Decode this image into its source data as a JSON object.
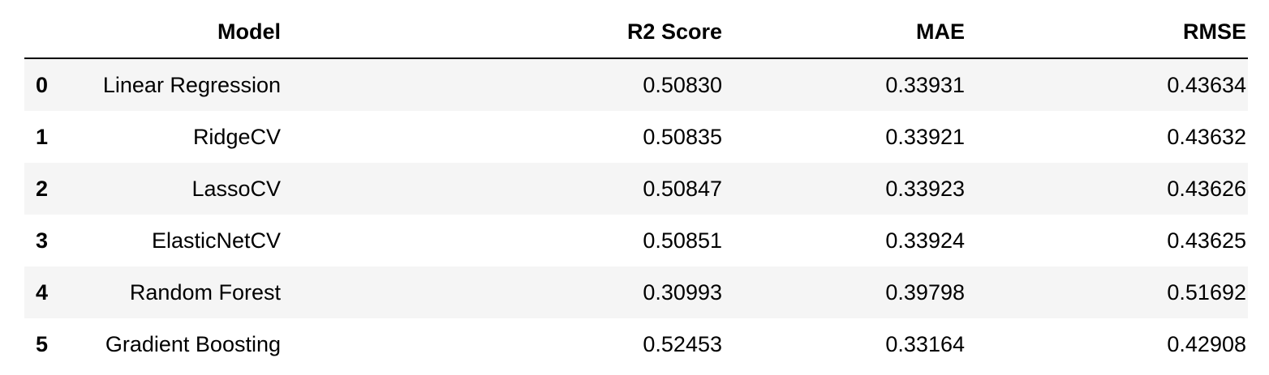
{
  "table": {
    "columns": {
      "index": "",
      "model": "Model",
      "r2": "R2 Score",
      "mae": "MAE",
      "rmse": "RMSE"
    },
    "rows": [
      {
        "index": "0",
        "model": "Linear Regression",
        "r2": "0.50830",
        "mae": "0.33931",
        "rmse": "0.43634"
      },
      {
        "index": "1",
        "model": "RidgeCV",
        "r2": "0.50835",
        "mae": "0.33921",
        "rmse": "0.43632"
      },
      {
        "index": "2",
        "model": "LassoCV",
        "r2": "0.50847",
        "mae": "0.33923",
        "rmse": "0.43626"
      },
      {
        "index": "3",
        "model": "ElasticNetCV",
        "r2": "0.50851",
        "mae": "0.33924",
        "rmse": "0.43625"
      },
      {
        "index": "4",
        "model": "Random Forest",
        "r2": "0.30993",
        "mae": "0.39798",
        "rmse": "0.51692"
      },
      {
        "index": "5",
        "model": "Gradient Boosting",
        "r2": "0.52453",
        "mae": "0.33164",
        "rmse": "0.42908"
      }
    ]
  }
}
